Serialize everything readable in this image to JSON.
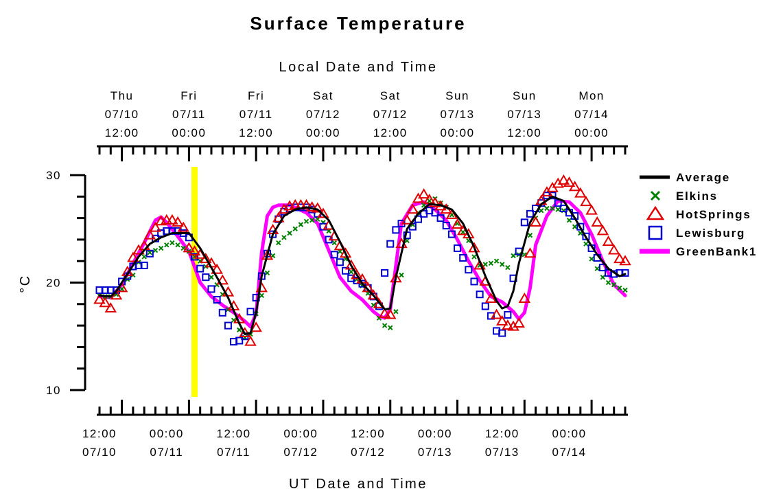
{
  "chart_data": {
    "type": "line",
    "title": "Surface Temperature",
    "top_axis_label": "Local Date and Time",
    "xlabel": "UT Date and Time",
    "ylabel": "°C",
    "ylim": [
      10,
      30
    ],
    "y_ticks": [
      10,
      20,
      30
    ],
    "xlim": [
      "07/10 08:00 UT",
      "07/14 06:00 UT"
    ],
    "top_ticks": [
      {
        "day": "Thu",
        "date": "07/10",
        "time": "12:00"
      },
      {
        "day": "Fri",
        "date": "07/11",
        "time": "00:00"
      },
      {
        "day": "Fri",
        "date": "07/11",
        "time": "12:00"
      },
      {
        "day": "Sat",
        "date": "07/12",
        "time": "00:00"
      },
      {
        "day": "Sat",
        "date": "07/12",
        "time": "12:00"
      },
      {
        "day": "Sun",
        "date": "07/13",
        "time": "00:00"
      },
      {
        "day": "Sun",
        "date": "07/13",
        "time": "12:00"
      },
      {
        "day": "Mon",
        "date": "07/14",
        "time": "00:00"
      }
    ],
    "bottom_ticks": [
      {
        "time": "12:00",
        "date": "07/10"
      },
      {
        "time": "00:00",
        "date": "07/11"
      },
      {
        "time": "12:00",
        "date": "07/11"
      },
      {
        "time": "00:00",
        "date": "07/12"
      },
      {
        "time": "12:00",
        "date": "07/12"
      },
      {
        "time": "00:00",
        "date": "07/13"
      },
      {
        "time": "12:00",
        "date": "07/13"
      },
      {
        "time": "00:00",
        "date": "07/14"
      }
    ],
    "highlight_time": "07/11 01:00 UT",
    "legend_position": "right",
    "series": [
      {
        "name": "Average",
        "style": "line",
        "color": "#000000"
      },
      {
        "name": "Elkins",
        "style": "x-marker",
        "color": "#008000"
      },
      {
        "name": "HotSprings",
        "style": "triangle",
        "color": "#e00000"
      },
      {
        "name": "Lewisburg",
        "style": "square",
        "color": "#0000d0"
      },
      {
        "name": "GreenBank1",
        "style": "line",
        "color": "#ff00ff"
      }
    ],
    "data": {
      "Average": {
        "x": [
          "07/10 08:00",
          "07/10 10:00",
          "07/10 11:00",
          "07/10 13:00",
          "07/10 15:00",
          "07/10 17:00",
          "07/10 19:00",
          "07/10 21:00",
          "07/11 00:00",
          "07/11 02:00",
          "07/11 05:00",
          "07/11 07:00",
          "07/11 09:00",
          "07/11 10:00",
          "07/11 11:00",
          "07/11 12:00",
          "07/11 13:00",
          "07/11 15:00",
          "07/11 17:00",
          "07/11 19:00",
          "07/11 21:00",
          "07/11 23:00",
          "07/12 01:00",
          "07/12 03:00",
          "07/12 05:00",
          "07/12 07:00",
          "07/12 09:00",
          "07/12 11:00",
          "07/12 12:00",
          "07/12 13:00",
          "07/12 15:00",
          "07/12 17:00",
          "07/12 19:00",
          "07/12 21:00",
          "07/12 23:00",
          "07/13 01:00",
          "07/13 03:00",
          "07/13 05:00",
          "07/13 07:00",
          "07/13 08:00",
          "07/13 09:00",
          "07/13 10:00",
          "07/13 11:00",
          "07/13 13:00",
          "07/13 15:00",
          "07/13 17:00",
          "07/13 19:00",
          "07/13 21:00",
          "07/13 23:00",
          "07/14 01:00",
          "07/14 03:00",
          "07/14 05:00",
          "07/14 06:00"
        ],
        "y": [
          18.8,
          18.7,
          19.2,
          20.8,
          22.4,
          23.6,
          24.2,
          24.6,
          24.6,
          23.2,
          20.5,
          18.6,
          16.2,
          15.2,
          15.3,
          17.2,
          20.6,
          24.5,
          26.2,
          26.8,
          27.0,
          26.8,
          25.8,
          23.8,
          21.6,
          19.9,
          18.8,
          17.5,
          17.6,
          20.5,
          25.0,
          26.4,
          27.3,
          27.2,
          26.8,
          25.5,
          23.3,
          20.6,
          18.3,
          17.6,
          17.8,
          19.2,
          21.8,
          25.6,
          27.3,
          28.0,
          27.6,
          26.0,
          24.2,
          22.6,
          21.3,
          20.6,
          20.8
        ]
      },
      "GreenBank1": {
        "x": [
          "07/10 08:00",
          "07/10 10:00",
          "07/10 12:00",
          "07/10 14:00",
          "07/10 16:00",
          "07/10 18:00",
          "07/10 19:00",
          "07/10 20:00",
          "07/10 22:00",
          "07/11 00:00",
          "07/11 02:00",
          "07/11 04:00",
          "07/11 06:00",
          "07/11 08:00",
          "07/11 10:00",
          "07/11 11:00",
          "07/11 12:00",
          "07/11 13:00",
          "07/11 14:00",
          "07/11 15:00",
          "07/11 16:00",
          "07/11 18:00",
          "07/11 21:00",
          "07/11 23:00",
          "07/12 01:00",
          "07/12 03:00",
          "07/12 05:00",
          "07/12 07:00",
          "07/12 09:00",
          "07/12 10:00",
          "07/12 11:00",
          "07/12 12:00",
          "07/12 13:00",
          "07/12 14:00",
          "07/12 16:00",
          "07/12 18:00",
          "07/12 20:00",
          "07/12 22:00",
          "07/13 00:00",
          "07/13 02:00",
          "07/13 04:00",
          "07/13 06:00",
          "07/13 08:00",
          "07/13 10:00",
          "07/13 11:00",
          "07/13 12:00",
          "07/13 13:00",
          "07/13 14:00",
          "07/13 16:00",
          "07/13 18:00",
          "07/13 20:00",
          "07/13 22:00",
          "07/14 00:00",
          "07/14 02:00",
          "07/14 04:00",
          "07/14 06:00"
        ],
        "y": [
          18.7,
          18.6,
          19.8,
          21.8,
          23.7,
          25.8,
          26.1,
          25.6,
          24.3,
          22.9,
          20.0,
          18.7,
          17.9,
          17.2,
          16.4,
          15.9,
          17.1,
          22.8,
          26.2,
          27.0,
          27.2,
          27.2,
          26.5,
          25.5,
          23.0,
          20.5,
          19.2,
          18.4,
          17.3,
          16.9,
          16.7,
          17.5,
          21.6,
          25.5,
          27.2,
          27.5,
          26.8,
          25.8,
          24.0,
          22.0,
          20.2,
          18.7,
          18.2,
          17.3,
          16.6,
          17.2,
          19.5,
          23.5,
          26.2,
          27.6,
          27.5,
          26.5,
          24.5,
          22.0,
          19.8,
          18.8
        ]
      },
      "HotSprings": {
        "x": [
          "07/10 08:00",
          "07/10 09:00",
          "07/10 10:00",
          "07/10 11:00",
          "07/10 12:00",
          "07/10 13:00",
          "07/10 14:00",
          "07/10 15:00",
          "07/10 16:00",
          "07/10 17:00",
          "07/10 18:00",
          "07/10 19:00",
          "07/10 20:00",
          "07/10 21:00",
          "07/10 22:00",
          "07/10 23:00",
          "07/11 00:00",
          "07/11 01:00",
          "07/11 02:00",
          "07/11 03:00",
          "07/11 04:00",
          "07/11 05:00",
          "07/11 06:00",
          "07/11 07:00",
          "07/11 08:00",
          "07/11 09:00",
          "07/11 10:00",
          "07/11 11:00",
          "07/11 12:00",
          "07/11 13:00",
          "07/11 14:00",
          "07/11 15:00",
          "07/11 16:00",
          "07/11 17:00",
          "07/11 18:00",
          "07/11 19:00",
          "07/11 20:00",
          "07/11 21:00",
          "07/11 22:00",
          "07/11 23:00",
          "07/12 00:00",
          "07/12 01:00",
          "07/12 02:00",
          "07/12 03:00",
          "07/12 04:00",
          "07/12 05:00",
          "07/12 06:00",
          "07/12 07:00",
          "07/12 08:00",
          "07/12 09:00",
          "07/12 10:00",
          "07/12 11:00",
          "07/12 12:00",
          "07/12 13:00",
          "07/12 14:00",
          "07/12 15:00",
          "07/12 16:00",
          "07/12 17:00",
          "07/12 18:00",
          "07/12 19:00",
          "07/12 20:00",
          "07/12 21:00",
          "07/12 22:00",
          "07/12 23:00",
          "07/13 00:00",
          "07/13 01:00",
          "07/13 02:00",
          "07/13 03:00",
          "07/13 04:00",
          "07/13 05:00",
          "07/13 06:00",
          "07/13 07:00",
          "07/13 08:00",
          "07/13 09:00",
          "07/13 10:00",
          "07/13 11:00",
          "07/13 12:00",
          "07/13 13:00",
          "07/13 14:00",
          "07/13 15:00",
          "07/13 16:00",
          "07/13 17:00",
          "07/13 18:00",
          "07/13 19:00",
          "07/13 20:00",
          "07/13 21:00",
          "07/13 22:00",
          "07/13 23:00",
          "07/14 00:00",
          "07/14 01:00",
          "07/14 02:00",
          "07/14 03:00",
          "07/14 04:00",
          "07/14 05:00",
          "07/14 06:00"
        ],
        "y": [
          18.4,
          18.1,
          17.6,
          18.8,
          19.5,
          21.0,
          22.3,
          23.0,
          23.4,
          24.4,
          25.1,
          25.7,
          25.8,
          25.8,
          25.6,
          25.1,
          23.2,
          22.9,
          22.6,
          22.2,
          21.8,
          21.2,
          20.2,
          19.1,
          17.8,
          16.6,
          15.3,
          14.5,
          15.8,
          19.5,
          22.5,
          24.9,
          26.0,
          26.8,
          27.1,
          27.2,
          27.2,
          27.2,
          27.0,
          26.9,
          26.4,
          25.3,
          24.3,
          23.4,
          22.7,
          21.6,
          20.7,
          20.3,
          19.5,
          18.8,
          18.0,
          17.1,
          17.0,
          20.4,
          23.6,
          25.8,
          26.8,
          27.8,
          28.2,
          27.7,
          27.4,
          27.1,
          26.8,
          26.3,
          25.4,
          24.8,
          24.5,
          23.2,
          21.6,
          20.1,
          18.5,
          17.0,
          16.4,
          16.0,
          15.9,
          16.2,
          18.5,
          22.7,
          25.6,
          27.6,
          28.4,
          28.8,
          29.2,
          29.5,
          29.3,
          28.9,
          28.3,
          27.5,
          26.7,
          25.6,
          24.8,
          23.8,
          23.0,
          22.2,
          22.0
        ]
      },
      "Lewisburg": {
        "x": [
          "07/10 08:00",
          "07/10 09:00",
          "07/10 10:00",
          "07/10 11:00",
          "07/10 12:00",
          "07/10 13:00",
          "07/10 14:00",
          "07/10 15:00",
          "07/10 16:00",
          "07/10 17:00",
          "07/10 18:00",
          "07/10 19:00",
          "07/10 20:00",
          "07/10 21:00",
          "07/10 22:00",
          "07/10 23:00",
          "07/11 00:00",
          "07/11 01:00",
          "07/11 02:00",
          "07/11 03:00",
          "07/11 04:00",
          "07/11 05:00",
          "07/11 06:00",
          "07/11 07:00",
          "07/11 08:00",
          "07/11 09:00",
          "07/11 10:00",
          "07/11 11:00",
          "07/11 12:00",
          "07/11 13:00",
          "07/11 14:00",
          "07/11 15:00",
          "07/11 16:00",
          "07/11 17:00",
          "07/11 18:00",
          "07/11 19:00",
          "07/11 20:00",
          "07/11 21:00",
          "07/11 22:00",
          "07/11 23:00",
          "07/12 00:00",
          "07/12 01:00",
          "07/12 02:00",
          "07/12 03:00",
          "07/12 04:00",
          "07/12 05:00",
          "07/12 06:00",
          "07/12 07:00",
          "07/12 08:00",
          "07/12 09:00",
          "07/12 10:00",
          "07/12 11:00",
          "07/12 12:00",
          "07/12 13:00",
          "07/12 14:00",
          "07/12 15:00",
          "07/12 16:00",
          "07/12 17:00",
          "07/12 18:00",
          "07/12 19:00",
          "07/12 20:00",
          "07/12 21:00",
          "07/12 22:00",
          "07/12 23:00",
          "07/13 00:00",
          "07/13 01:00",
          "07/13 02:00",
          "07/13 03:00",
          "07/13 04:00",
          "07/13 05:00",
          "07/13 06:00",
          "07/13 07:00",
          "07/13 08:00",
          "07/13 09:00",
          "07/13 10:00",
          "07/13 11:00",
          "07/13 12:00",
          "07/13 13:00",
          "07/13 14:00",
          "07/13 15:00",
          "07/13 16:00",
          "07/13 17:00",
          "07/13 18:00",
          "07/13 19:00",
          "07/13 20:00",
          "07/13 21:00",
          "07/13 22:00",
          "07/13 23:00",
          "07/14 00:00",
          "07/14 01:00",
          "07/14 02:00",
          "07/14 03:00",
          "07/14 04:00",
          "07/14 05:00",
          "07/14 06:00"
        ],
        "y": [
          19.3,
          19.3,
          19.3,
          19.3,
          20.1,
          20.6,
          21.5,
          21.6,
          21.6,
          22.7,
          24.1,
          24.6,
          24.8,
          24.8,
          24.8,
          24.6,
          24.2,
          22.4,
          21.3,
          20.5,
          19.4,
          18.4,
          17.2,
          16.0,
          14.5,
          14.6,
          15.0,
          17.3,
          18.6,
          20.6,
          22.7,
          24.5,
          25.9,
          26.6,
          26.9,
          27.0,
          27.0,
          27.0,
          26.8,
          26.4,
          25.2,
          24.0,
          22.6,
          21.9,
          21.1,
          20.4,
          20.2,
          19.9,
          19.5,
          18.7,
          17.8,
          20.9,
          23.6,
          24.9,
          25.5,
          24.4,
          25.2,
          25.9,
          26.4,
          26.7,
          26.5,
          26.0,
          25.3,
          24.5,
          23.2,
          22.3,
          21.2,
          20.1,
          18.9,
          17.8,
          16.9,
          15.5,
          15.3,
          17.0,
          20.4,
          22.9,
          25.6,
          26.4,
          26.9,
          27.4,
          28.1,
          28.1,
          27.4,
          26.9,
          26.5,
          26.2,
          25.2,
          24.3,
          23.2,
          22.3,
          21.4,
          20.9,
          20.8,
          20.9,
          20.9
        ]
      },
      "Elkins": {
        "x": [
          "07/10 08:00",
          "07/10 09:00",
          "07/10 10:00",
          "07/10 11:00",
          "07/10 12:00",
          "07/10 13:00",
          "07/10 14:00",
          "07/10 15:00",
          "07/10 16:00",
          "07/10 17:00",
          "07/10 18:00",
          "07/10 19:00",
          "07/10 20:00",
          "07/10 21:00",
          "07/10 22:00",
          "07/10 23:00",
          "07/11 00:00",
          "07/11 01:00",
          "07/11 02:00",
          "07/11 03:00",
          "07/11 04:00",
          "07/11 05:00",
          "07/11 06:00",
          "07/11 07:00",
          "07/11 08:00",
          "07/11 09:00",
          "07/11 10:00",
          "07/11 11:00",
          "07/11 12:00",
          "07/11 13:00",
          "07/11 14:00",
          "07/11 15:00",
          "07/11 16:00",
          "07/11 17:00",
          "07/11 18:00",
          "07/11 19:00",
          "07/11 20:00",
          "07/11 21:00",
          "07/11 22:00",
          "07/11 23:00",
          "07/12 00:00",
          "07/12 01:00",
          "07/12 02:00",
          "07/12 03:00",
          "07/12 04:00",
          "07/12 05:00",
          "07/12 06:00",
          "07/12 07:00",
          "07/12 08:00",
          "07/12 09:00",
          "07/12 10:00",
          "07/12 11:00",
          "07/12 12:00",
          "07/12 13:00",
          "07/12 14:00",
          "07/12 15:00",
          "07/12 16:00",
          "07/12 17:00",
          "07/12 18:00",
          "07/12 19:00",
          "07/12 20:00",
          "07/12 21:00",
          "07/12 22:00",
          "07/12 23:00",
          "07/13 00:00",
          "07/13 01:00",
          "07/13 02:00",
          "07/13 03:00",
          "07/13 04:00",
          "07/13 05:00",
          "07/13 06:00",
          "07/13 07:00",
          "07/13 08:00",
          "07/13 09:00",
          "07/13 10:00",
          "07/13 11:00",
          "07/13 12:00",
          "07/13 13:00",
          "07/13 14:00",
          "07/13 15:00",
          "07/13 16:00",
          "07/13 17:00",
          "07/13 18:00",
          "07/13 19:00",
          "07/13 20:00",
          "07/13 21:00",
          "07/13 22:00",
          "07/13 23:00",
          "07/14 00:00",
          "07/14 01:00",
          "07/14 02:00",
          "07/14 03:00",
          "07/14 04:00",
          "07/14 05:00",
          "07/14 06:00"
        ],
        "y": [
          18.8,
          18.7,
          18.7,
          18.9,
          19.4,
          20.3,
          20.7,
          21.9,
          22.4,
          22.8,
          23.0,
          23.2,
          23.5,
          23.7,
          23.5,
          23.2,
          22.9,
          22.4,
          22.0,
          21.5,
          20.5,
          19.8,
          18.9,
          17.5,
          16.5,
          15.6,
          14.9,
          15.2,
          17.1,
          18.8,
          20.9,
          22.5,
          23.7,
          24.2,
          24.6,
          25.0,
          25.4,
          25.7,
          25.8,
          25.9,
          25.6,
          24.8,
          23.7,
          22.9,
          22.2,
          21.0,
          20.3,
          19.7,
          19.0,
          17.9,
          16.7,
          16.0,
          15.8,
          17.3,
          20.7,
          23.9,
          25.4,
          26.5,
          27.2,
          27.6,
          27.8,
          27.4,
          27.0,
          26.3,
          25.5,
          24.7,
          23.9,
          22.4,
          21.6,
          21.7,
          21.8,
          22.0,
          21.7,
          21.4,
          22.5,
          22.6,
          22.6,
          24.4,
          26.0,
          26.7,
          26.9,
          26.9,
          26.8,
          26.7,
          25.8,
          25.2,
          24.6,
          23.6,
          22.2,
          21.3,
          20.5,
          20.0,
          19.8,
          19.5,
          19.3
        ]
      }
    }
  }
}
